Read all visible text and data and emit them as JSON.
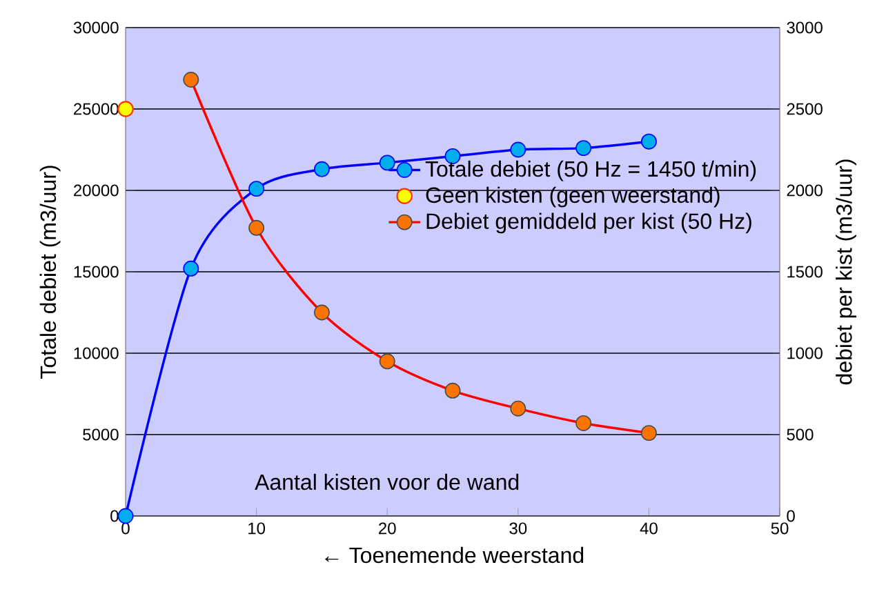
{
  "chart_data": {
    "type": "line",
    "xlabel": "← Toenemende weerstand",
    "ylabel": "Totale debiet (m3/uur)",
    "y2label": "debiet per kist (m3/uur)",
    "annotations": [
      "Aantal kisten voor de wand"
    ],
    "xlim": [
      0,
      50
    ],
    "xticks": [
      0,
      10,
      20,
      30,
      40,
      50
    ],
    "ylim": [
      0,
      30000
    ],
    "yticks": [
      0,
      5000,
      10000,
      15000,
      20000,
      25000,
      30000
    ],
    "y2lim": [
      0,
      3000
    ],
    "y2ticks": [
      0,
      500,
      1000,
      1500,
      2000,
      2500,
      3000
    ],
    "grid": "y",
    "legend": "right",
    "marker": "circle",
    "series": [
      {
        "name": "Totale debiet (50 Hz = 1450 t/min)",
        "color": "#0000ff",
        "x": [
          0,
          5,
          10,
          15,
          20,
          25,
          30,
          35,
          40
        ],
        "values": [
          0,
          15200,
          20100,
          21300,
          21700,
          22100,
          22500,
          22600,
          23000
        ]
      },
      {
        "name": "Geen kisten (geen weerstand)",
        "type": "scatter",
        "color": "#ffff00",
        "x": [
          0
        ],
        "values": [
          25000
        ]
      },
      {
        "name": "Debiet gemiddeld per kist (50 Hz)",
        "color": "#ff0000",
        "axis": "y2",
        "x": [
          5,
          10,
          15,
          20,
          25,
          30,
          35,
          40
        ],
        "values": [
          2680,
          1770,
          1250,
          950,
          770,
          660,
          570,
          510
        ]
      }
    ]
  }
}
